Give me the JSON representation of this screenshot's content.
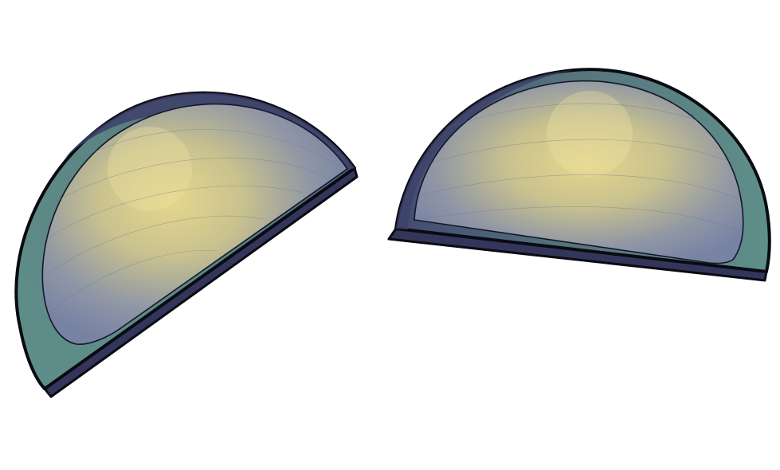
{
  "scene": {
    "background": "#ffffff",
    "colors": {
      "outline": "#0a0a12",
      "rim_teal": "#5a8a85",
      "rim_dark": "#3a3d63",
      "inner_edge": "#7b86a6",
      "glow_center": "#e3d58f",
      "glow_mid": "#b9b893",
      "glow_outer": "#7b86a6"
    },
    "shapes": [
      {
        "name": "left-half-disc",
        "icon": "half-disc-icon"
      },
      {
        "name": "right-half-disc",
        "icon": "half-disc-icon"
      }
    ]
  }
}
